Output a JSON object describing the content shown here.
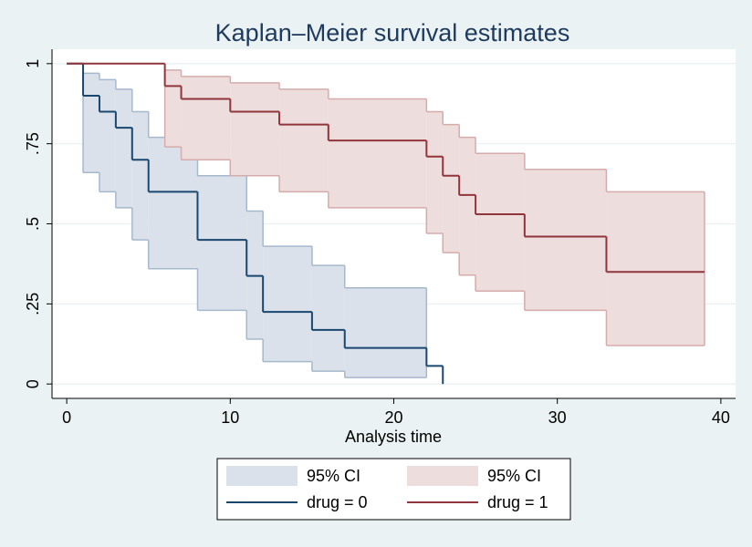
{
  "chart_data": {
    "type": "step",
    "title": "Kaplan–Meier survival estimates",
    "x_label": "Analysis time",
    "xlim": [
      -0.9,
      40.9
    ],
    "xticks": [
      0,
      10,
      20,
      30,
      40
    ],
    "ylim": [
      -0.045,
      1.045
    ],
    "yticks": [
      0,
      {
        "value": 0.25,
        "label": ".25"
      },
      {
        "value": 0.5,
        "label": ".5"
      },
      {
        "value": 0.75,
        "label": ".75"
      },
      1
    ],
    "grid": true,
    "legend": "bottom",
    "series": [
      {
        "name": "drug = 0",
        "ci_name": "95% CI",
        "color": "#1a476f",
        "ci_fill": "#dbe1ea",
        "ci_line": "#a6b8cb",
        "x": [
          0,
          1,
          2,
          3,
          4,
          5,
          8,
          11,
          12,
          15,
          17,
          22,
          23
        ],
        "values": [
          1,
          0.9,
          0.85,
          0.8,
          0.7,
          0.6,
          0.45,
          0.3375,
          0.225,
          0.1688,
          0.1125,
          0.05625,
          0
        ],
        "lower": [
          null,
          0.66,
          0.6,
          0.55,
          0.45,
          0.36,
          0.23,
          0.14,
          0.07,
          0.04,
          0.02,
          null,
          null
        ],
        "upper": [
          null,
          0.97,
          0.95,
          0.92,
          0.85,
          0.77,
          0.65,
          0.54,
          0.43,
          0.37,
          0.3,
          null,
          null
        ]
      },
      {
        "name": "drug = 1",
        "ci_name": "95% CI",
        "color": "#90353b",
        "ci_fill": "#eedddd",
        "ci_line": "#d6abab",
        "x": [
          0,
          6,
          7,
          10,
          13,
          16,
          22,
          23,
          24,
          25,
          28,
          33
        ],
        "end": 39,
        "values": [
          1,
          0.93,
          0.89,
          0.85,
          0.81,
          0.76,
          0.71,
          0.65,
          0.59,
          0.53,
          0.46,
          0.35
        ],
        "lower": [
          null,
          0.74,
          0.7,
          0.65,
          0.6,
          0.55,
          0.47,
          0.41,
          0.34,
          0.29,
          0.23,
          0.12
        ],
        "upper": [
          null,
          0.98,
          0.96,
          0.94,
          0.92,
          0.89,
          0.85,
          0.81,
          0.77,
          0.72,
          0.67,
          0.6
        ]
      }
    ]
  }
}
